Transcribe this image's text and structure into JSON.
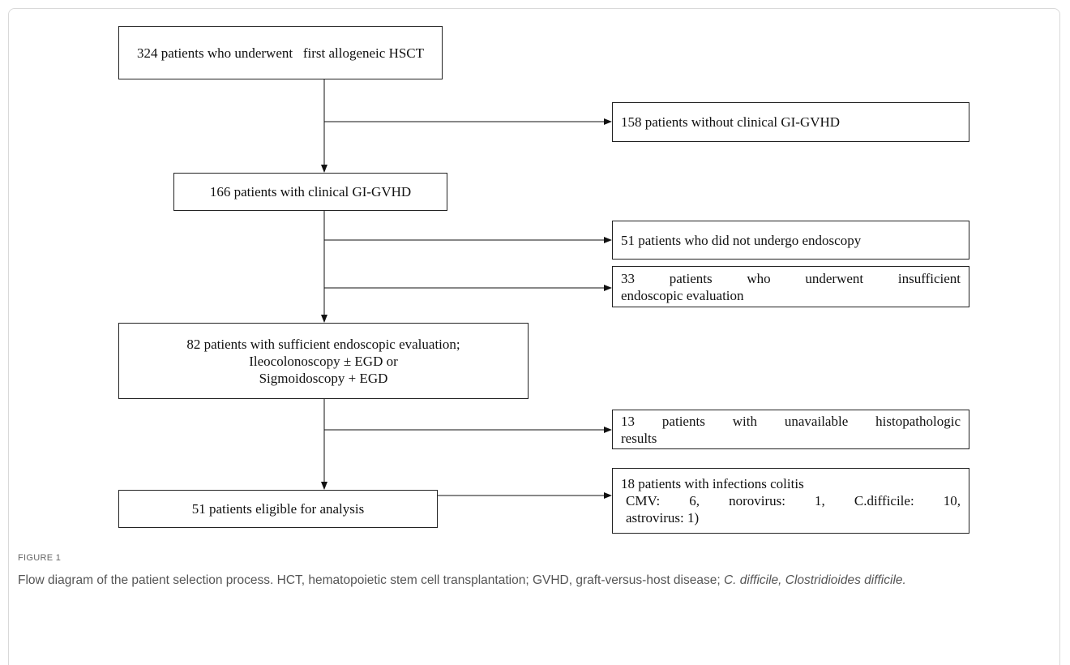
{
  "steps": [
    {
      "lines": [
        "324 patients who underwent   first allogeneic HSCT"
      ]
    },
    {
      "lines": [
        "166 patients with clinical GI-GVHD"
      ]
    },
    {
      "lines": [
        "82 patients with sufficient endoscopic evaluation;",
        "Ileocolonoscopy ± EGD or",
        "Sigmoidoscopy + EGD"
      ]
    },
    {
      "lines": [
        "51 patients eligible for analysis"
      ]
    }
  ],
  "exclusions": [
    {
      "lines": [
        "158 patients without clinical GI-GVHD"
      ]
    },
    {
      "lines": [
        "51 patients who did not undergo endoscopy"
      ]
    },
    {
      "lines": [
        "33 patients who underwent insufficient",
        "endoscopic evaluation"
      ]
    },
    {
      "lines": [
        "13 patients with unavailable histopathologic",
        "results"
      ]
    },
    {
      "lines": [
        "18 patients with infections colitis",
        "CMV: 6, norovirus: 1, C.difficile: 10,",
        "astrovirus: 1)"
      ]
    }
  ],
  "caption": {
    "label": "FIGURE 1",
    "text": "Flow diagram of the patient selection process. HCT, hematopoietic stem cell transplantation; GVHD, graft-versus-host disease; ",
    "italic": "C. difficile, Clostridioides difficile."
  }
}
